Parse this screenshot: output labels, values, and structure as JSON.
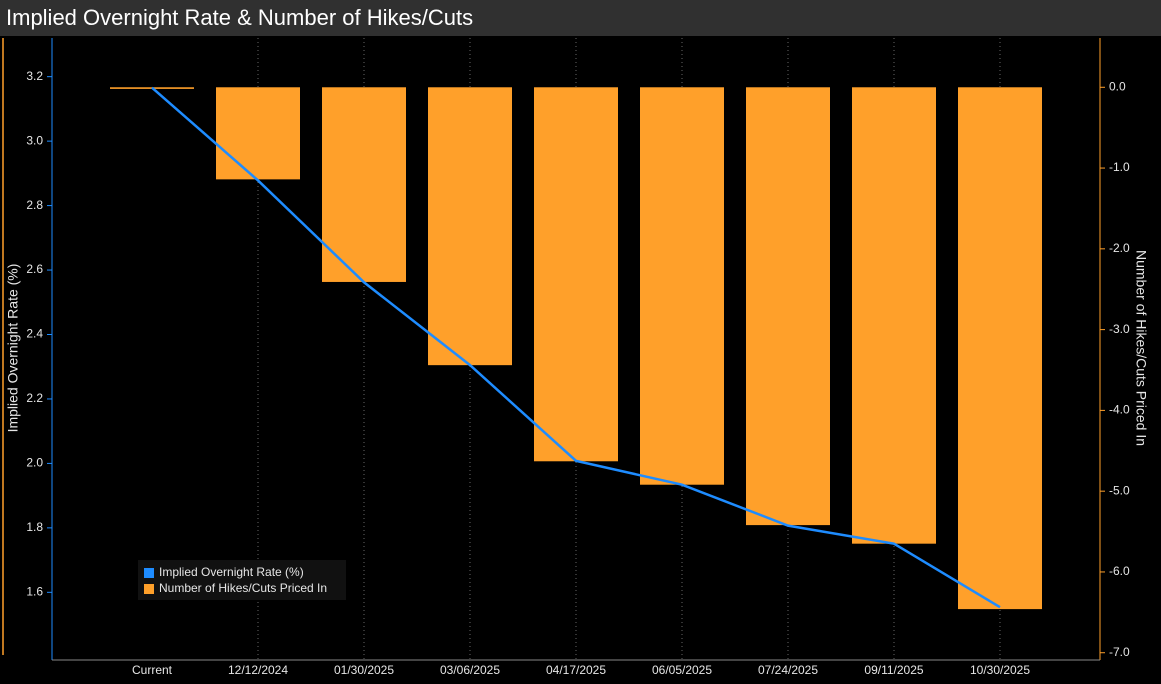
{
  "chart_data": {
    "type": "combo",
    "title": "Implied Overnight Rate & Number of Hikes/Cuts",
    "ylabel": "Implied Overnight Rate (%)",
    "y2label": "Number of Hikes/Cuts Priced In",
    "categories": [
      "Current",
      "12/12/2024",
      "01/30/2025",
      "03/06/2025",
      "04/17/2025",
      "06/05/2025",
      "07/24/2025",
      "09/11/2025",
      "10/30/2025"
    ],
    "series": [
      {
        "name": "Implied Overnight Rate (%)",
        "type": "line",
        "axis": "y",
        "color": "#1e8cff",
        "values": [
          3.166,
          2.878,
          2.562,
          2.305,
          2.008,
          1.934,
          1.807,
          1.751,
          1.554
        ]
      },
      {
        "name": "Number of Hikes/Cuts Priced In",
        "type": "bar",
        "axis": "y2",
        "color": "#ffa02a",
        "values": [
          -0.02,
          -1.14,
          -2.41,
          -3.44,
          -4.63,
          -4.92,
          -5.42,
          -5.65,
          -6.46
        ]
      }
    ],
    "ylim": [
      1.39,
      3.32
    ],
    "yticks": [
      1.6,
      1.8,
      {
        "value": 2.0,
        "label": "2.0"
      },
      2.2,
      2.4,
      2.6,
      2.8,
      {
        "value": 3.0,
        "label": "3.0"
      },
      3.2
    ],
    "y2lim": [
      -7.09,
      0.61
    ],
    "y2ticks": [
      {
        "value": 0,
        "label": "0.0"
      },
      {
        "value": -1,
        "label": "-1.0"
      },
      {
        "value": -2,
        "label": "-2.0"
      },
      {
        "value": -3,
        "label": "-3.0"
      },
      {
        "value": -4,
        "label": "-4.0"
      },
      {
        "value": -5,
        "label": "-5.0"
      },
      {
        "value": -6,
        "label": "-6.0"
      },
      {
        "value": -7,
        "label": "-7.0"
      }
    ],
    "grid": true,
    "legend": "lower left"
  }
}
